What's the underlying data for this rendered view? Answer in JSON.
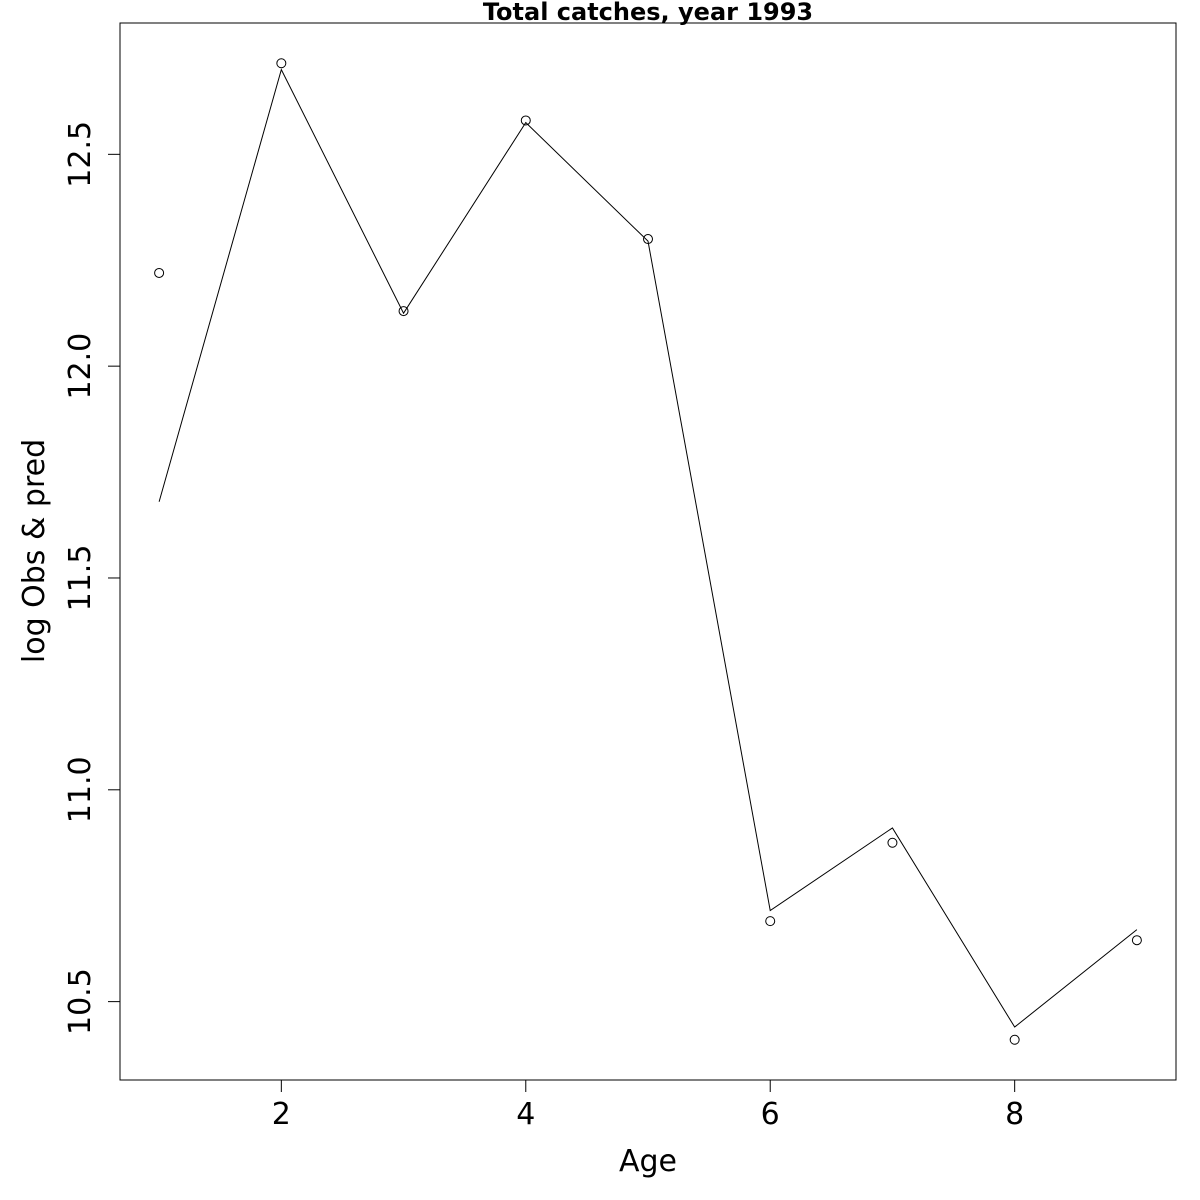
{
  "chart_data": {
    "type": "line",
    "title": "Total catches, year 1993",
    "xlabel": "Age",
    "ylabel": "log Obs & pred",
    "xlim": [
      0.68,
      9.32
    ],
    "ylim": [
      10.315,
      12.81
    ],
    "x_ticks": [
      2,
      4,
      6,
      8
    ],
    "y_ticks": [
      10.5,
      11.0,
      11.5,
      12.0,
      12.5
    ],
    "x_tick_labels": [
      "2",
      "4",
      "6",
      "8"
    ],
    "y_tick_labels": [
      "10.5",
      "11.0",
      "11.5",
      "12.0",
      "12.5"
    ],
    "grid": false,
    "series": [
      {
        "style": "points",
        "x": [
          1,
          2,
          3,
          4,
          5,
          6,
          7,
          8,
          9
        ],
        "y": [
          12.22,
          12.715,
          12.13,
          12.58,
          12.3,
          10.69,
          10.875,
          10.41,
          10.645
        ]
      },
      {
        "style": "line",
        "x": [
          1,
          2,
          3,
          4,
          5,
          6,
          7,
          8,
          9
        ],
        "y": [
          11.68,
          12.7,
          12.125,
          12.575,
          12.295,
          10.715,
          10.91,
          10.44,
          10.67
        ]
      }
    ]
  }
}
